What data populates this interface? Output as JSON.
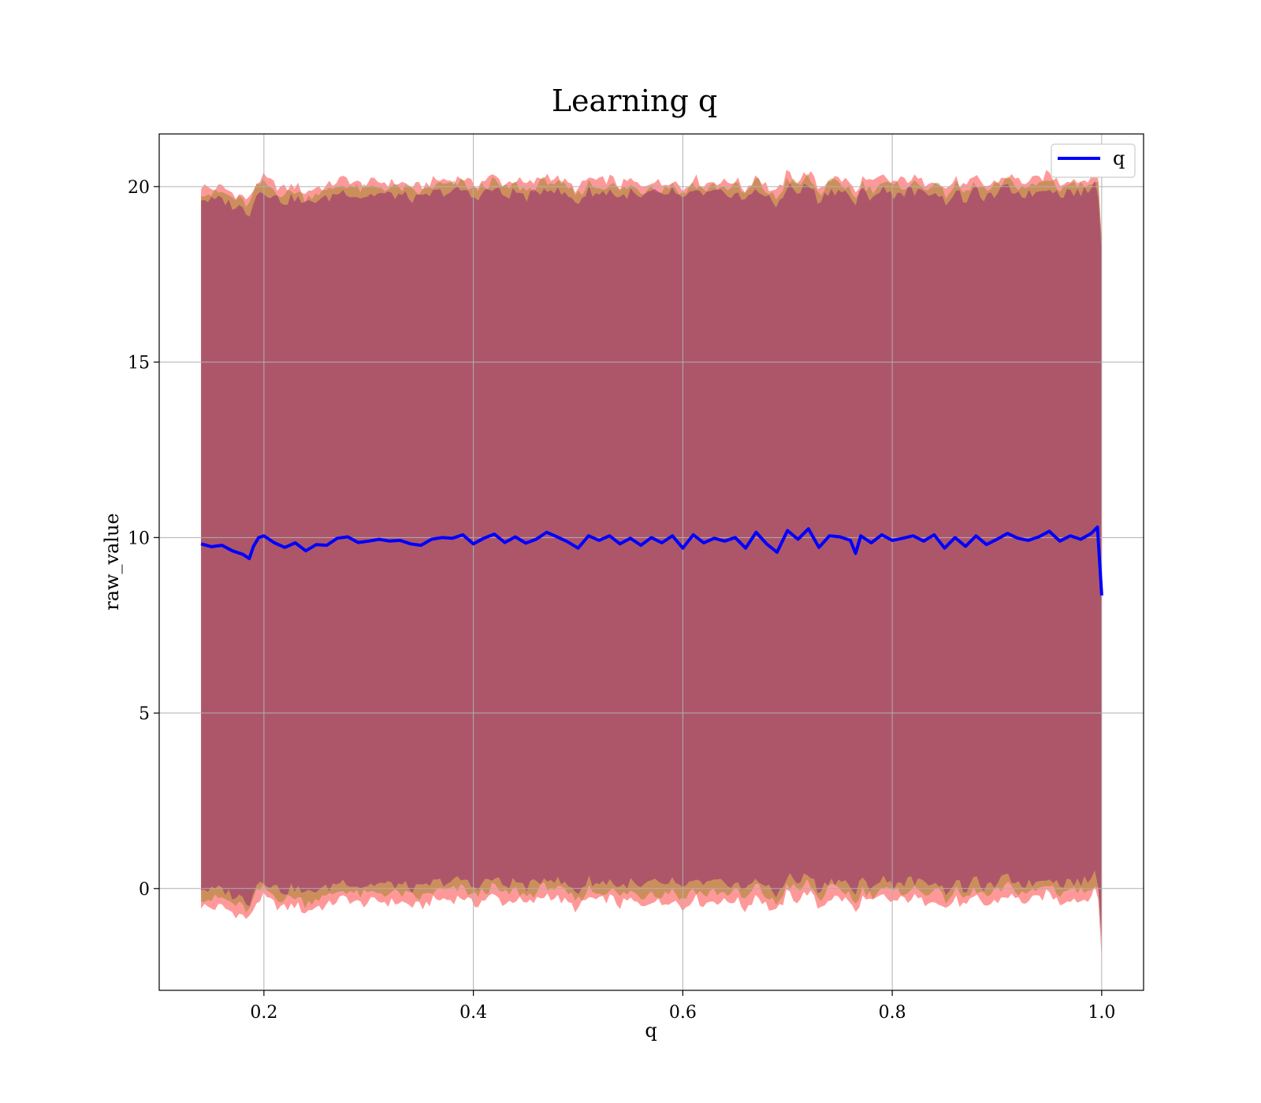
{
  "chart_data": {
    "type": "line",
    "title": "Learning q",
    "xlabel": "q",
    "ylabel": "raw_value",
    "xlim": [
      0.1,
      1.04
    ],
    "ylim": [
      -2.9,
      21.5
    ],
    "xticks": [
      0.2,
      0.4,
      0.6,
      0.8,
      1.0
    ],
    "xtick_labels": [
      "0.2",
      "0.4",
      "0.6",
      "0.8",
      "1.0"
    ],
    "yticks": [
      0,
      5,
      10,
      15,
      20
    ],
    "ytick_labels": [
      "0",
      "5",
      "10",
      "15",
      "20"
    ],
    "grid": true,
    "legend": {
      "position": "top-right",
      "entries": [
        "q"
      ]
    },
    "x_start": 0.14,
    "x_end": 1.0,
    "series": [
      {
        "name": "q",
        "color": "#0000ff",
        "kind": "line",
        "points": [
          [
            0.14,
            9.82
          ],
          [
            0.15,
            9.74
          ],
          [
            0.16,
            9.78
          ],
          [
            0.17,
            9.62
          ],
          [
            0.18,
            9.52
          ],
          [
            0.186,
            9.4
          ],
          [
            0.19,
            9.75
          ],
          [
            0.195,
            10.0
          ],
          [
            0.2,
            10.05
          ],
          [
            0.21,
            9.85
          ],
          [
            0.22,
            9.72
          ],
          [
            0.23,
            9.85
          ],
          [
            0.24,
            9.62
          ],
          [
            0.25,
            9.8
          ],
          [
            0.26,
            9.78
          ],
          [
            0.27,
            9.98
          ],
          [
            0.28,
            10.02
          ],
          [
            0.29,
            9.86
          ],
          [
            0.3,
            9.9
          ],
          [
            0.31,
            9.95
          ],
          [
            0.32,
            9.9
          ],
          [
            0.33,
            9.92
          ],
          [
            0.34,
            9.82
          ],
          [
            0.35,
            9.78
          ],
          [
            0.36,
            9.95
          ],
          [
            0.37,
            10.0
          ],
          [
            0.38,
            9.98
          ],
          [
            0.39,
            10.08
          ],
          [
            0.4,
            9.82
          ],
          [
            0.41,
            9.98
          ],
          [
            0.42,
            10.1
          ],
          [
            0.43,
            9.86
          ],
          [
            0.44,
            10.02
          ],
          [
            0.45,
            9.84
          ],
          [
            0.46,
            9.95
          ],
          [
            0.47,
            10.15
          ],
          [
            0.48,
            10.02
          ],
          [
            0.49,
            9.88
          ],
          [
            0.5,
            9.7
          ],
          [
            0.51,
            10.05
          ],
          [
            0.52,
            9.92
          ],
          [
            0.53,
            10.05
          ],
          [
            0.54,
            9.82
          ],
          [
            0.55,
            9.98
          ],
          [
            0.56,
            9.78
          ],
          [
            0.57,
            10.0
          ],
          [
            0.58,
            9.85
          ],
          [
            0.59,
            10.05
          ],
          [
            0.6,
            9.7
          ],
          [
            0.61,
            10.08
          ],
          [
            0.62,
            9.85
          ],
          [
            0.63,
            9.98
          ],
          [
            0.64,
            9.9
          ],
          [
            0.65,
            10.0
          ],
          [
            0.66,
            9.7
          ],
          [
            0.67,
            10.15
          ],
          [
            0.68,
            9.82
          ],
          [
            0.69,
            9.58
          ],
          [
            0.7,
            10.2
          ],
          [
            0.71,
            9.95
          ],
          [
            0.72,
            10.25
          ],
          [
            0.73,
            9.72
          ],
          [
            0.74,
            10.05
          ],
          [
            0.75,
            10.02
          ],
          [
            0.76,
            9.92
          ],
          [
            0.765,
            9.55
          ],
          [
            0.77,
            10.05
          ],
          [
            0.78,
            9.85
          ],
          [
            0.79,
            10.08
          ],
          [
            0.8,
            9.92
          ],
          [
            0.81,
            9.98
          ],
          [
            0.82,
            10.05
          ],
          [
            0.83,
            9.9
          ],
          [
            0.84,
            10.08
          ],
          [
            0.85,
            9.7
          ],
          [
            0.86,
            10.0
          ],
          [
            0.87,
            9.75
          ],
          [
            0.88,
            10.05
          ],
          [
            0.89,
            9.8
          ],
          [
            0.9,
            9.95
          ],
          [
            0.91,
            10.12
          ],
          [
            0.92,
            9.98
          ],
          [
            0.93,
            9.92
          ],
          [
            0.94,
            10.02
          ],
          [
            0.95,
            10.18
          ],
          [
            0.96,
            9.9
          ],
          [
            0.97,
            10.05
          ],
          [
            0.98,
            9.95
          ],
          [
            0.99,
            10.12
          ],
          [
            0.996,
            10.3
          ],
          [
            1.0,
            8.35
          ]
        ]
      },
      {
        "name": "",
        "color": "#ff0000",
        "kind": "band",
        "opacity": 0.4,
        "upper_offset": 10.2,
        "lower_offset": -10.3
      },
      {
        "name": "",
        "color": "#808000",
        "kind": "band",
        "opacity": 0.4,
        "upper_offset": 10.05,
        "lower_offset": -10.05
      },
      {
        "name": "",
        "color": "#800080",
        "kind": "band",
        "opacity": 0.4,
        "upper_offset": 9.85,
        "lower_offset": -9.8
      }
    ]
  }
}
